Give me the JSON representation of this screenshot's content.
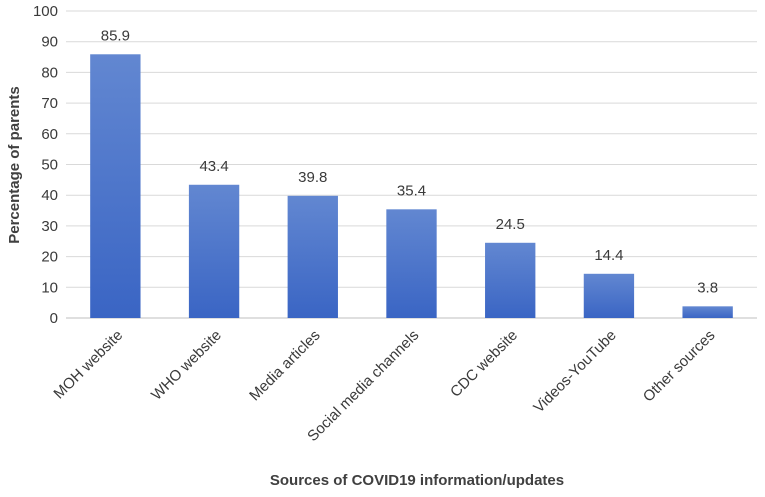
{
  "chart_data": {
    "type": "bar",
    "categories": [
      "MOH website",
      "WHO website",
      "Media articles",
      "Social media channels",
      "CDC website",
      "Videos-YouTube",
      "Other sources"
    ],
    "values": [
      85.9,
      43.4,
      39.8,
      35.4,
      24.5,
      14.4,
      3.8
    ],
    "value_labels": [
      "85.9",
      "43.4",
      "39.8",
      "35.4",
      "24.5",
      "14.4",
      "3.8"
    ],
    "title": "",
    "xlabel": "Sources of COVID19 information/updates",
    "ylabel": "Percentage of parents",
    "ylim": [
      0,
      100
    ],
    "yticks": [
      0,
      10,
      20,
      30,
      40,
      50,
      60,
      70,
      80,
      90,
      100
    ],
    "ytick_labels": [
      "0",
      "10",
      "20",
      "30",
      "40",
      "50",
      "60",
      "70",
      "80",
      "90",
      "100"
    ],
    "grid": true,
    "legend": "none",
    "bar_color_top": "#6287d1",
    "bar_color_bottom": "#3a65c4"
  }
}
